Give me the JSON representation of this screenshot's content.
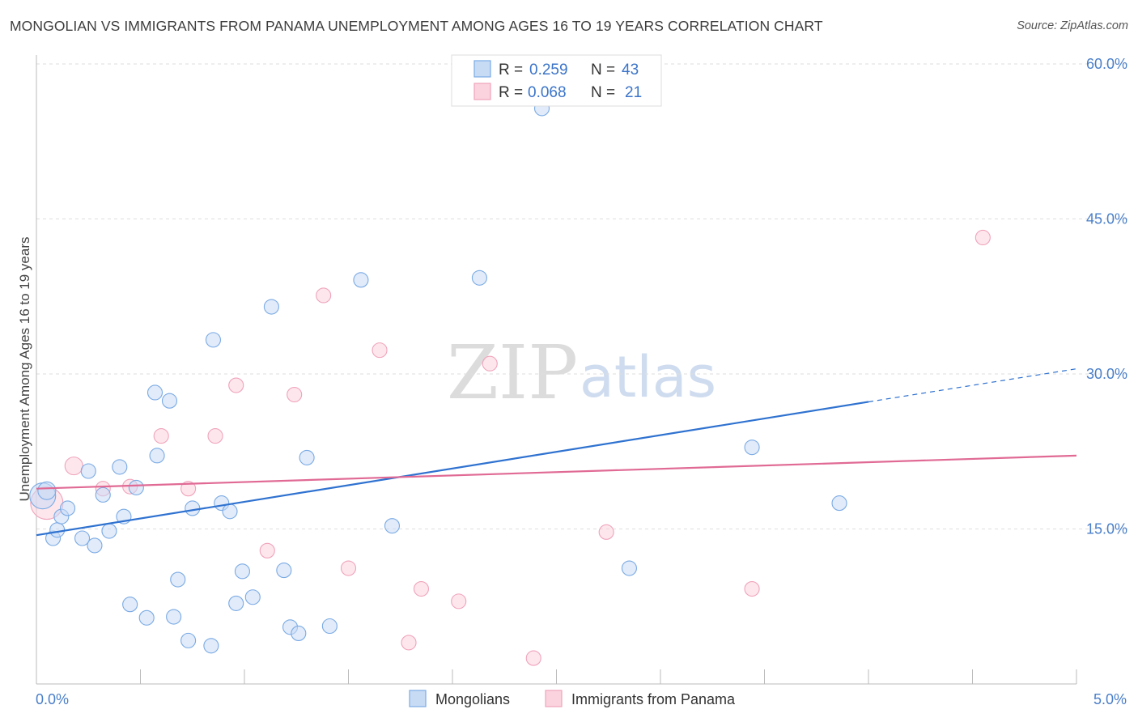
{
  "title": "MONGOLIAN VS IMMIGRANTS FROM PANAMA UNEMPLOYMENT AMONG AGES 16 TO 19 YEARS CORRELATION CHART",
  "source": "Source: ZipAtlas.com",
  "watermark": {
    "zip": "ZIP",
    "atlas": "atlas"
  },
  "legend": {
    "rows": [
      {
        "r_label": "R =",
        "r_value": "0.259",
        "n_label": "N =",
        "n_value": "43"
      },
      {
        "r_label": "R =",
        "r_value": "0.068",
        "n_label": "N =",
        "n_value": "21"
      }
    ]
  },
  "bottom_legend": [
    "Mongolians",
    "Immigrants from Panama"
  ],
  "chart_data": {
    "type": "scatter",
    "title": "MONGOLIAN VS IMMIGRANTS FROM PANAMA UNEMPLOYMENT AMONG AGES 16 TO 19 YEARS CORRELATION CHART",
    "xlabel": "",
    "ylabel": "Unemployment Among Ages 16 to 19 years",
    "xlim": [
      0,
      5.0
    ],
    "ylim": [
      0,
      60.0
    ],
    "x_tick_labels": [
      "0.0%",
      "5.0%"
    ],
    "y_ticks": [
      15,
      30,
      45,
      60
    ],
    "y_tick_labels": [
      "15.0%",
      "30.0%",
      "45.0%",
      "60.0%"
    ],
    "colors": {
      "mongolians": "#7aaae4",
      "panama": "#f0a3bb",
      "mongolians_line": "#2f72d0",
      "panama_line": "#e06a94",
      "tick_text": "#4a7fc9"
    },
    "series": [
      {
        "name": "Mongolians",
        "r": 0.259,
        "n": 43,
        "trend": {
          "x0": 0.0,
          "y0": 14.4,
          "x1": 4.0,
          "y1": 27.3,
          "dash_to_x": 5.0,
          "dash_to_y": 30.5
        },
        "points": [
          [
            0.03,
            18.2,
            16
          ],
          [
            0.05,
            18.7,
            11
          ],
          [
            0.08,
            14.1,
            9
          ],
          [
            0.1,
            14.9,
            9
          ],
          [
            0.12,
            16.2,
            9
          ],
          [
            0.15,
            17.0,
            9
          ],
          [
            0.22,
            14.1,
            9
          ],
          [
            0.25,
            20.6,
            9
          ],
          [
            0.28,
            13.4,
            9
          ],
          [
            0.32,
            18.3,
            9
          ],
          [
            0.35,
            14.8,
            9
          ],
          [
            0.4,
            21.0,
            9
          ],
          [
            0.42,
            16.2,
            9
          ],
          [
            0.45,
            7.7,
            9
          ],
          [
            0.48,
            19.0,
            9
          ],
          [
            0.53,
            6.4,
            9
          ],
          [
            0.57,
            28.2,
            9
          ],
          [
            0.58,
            22.1,
            9
          ],
          [
            0.64,
            27.4,
            9
          ],
          [
            0.66,
            6.5,
            9
          ],
          [
            0.68,
            10.1,
            9
          ],
          [
            0.73,
            4.2,
            9
          ],
          [
            0.75,
            17.0,
            9
          ],
          [
            0.84,
            3.7,
            9
          ],
          [
            0.85,
            33.3,
            9
          ],
          [
            0.89,
            17.5,
            9
          ],
          [
            0.93,
            16.7,
            9
          ],
          [
            0.96,
            7.8,
            9
          ],
          [
            0.99,
            10.9,
            9
          ],
          [
            1.04,
            8.4,
            9
          ],
          [
            1.13,
            36.5,
            9
          ],
          [
            1.19,
            11.0,
            9
          ],
          [
            1.22,
            5.5,
            9
          ],
          [
            1.26,
            4.9,
            9
          ],
          [
            1.3,
            21.9,
            9
          ],
          [
            1.41,
            5.6,
            9
          ],
          [
            1.56,
            39.1,
            9
          ],
          [
            1.71,
            15.3,
            9
          ],
          [
            2.13,
            39.3,
            9
          ],
          [
            2.43,
            55.7,
            9
          ],
          [
            2.85,
            11.2,
            9
          ],
          [
            3.44,
            22.9,
            9
          ],
          [
            3.86,
            17.5,
            9
          ]
        ]
      },
      {
        "name": "Immigrants from Panama",
        "r": 0.068,
        "n": 21,
        "trend": {
          "x0": 0.0,
          "y0": 18.9,
          "x1": 5.0,
          "y1": 22.1
        },
        "points": [
          [
            0.05,
            17.5,
            20
          ],
          [
            0.18,
            21.1,
            11
          ],
          [
            0.32,
            18.9,
            9
          ],
          [
            0.45,
            19.1,
            9
          ],
          [
            0.6,
            24.0,
            9
          ],
          [
            0.73,
            18.9,
            9
          ],
          [
            0.86,
            24.0,
            9
          ],
          [
            0.96,
            28.9,
            9
          ],
          [
            1.11,
            12.9,
            9
          ],
          [
            1.24,
            28.0,
            9
          ],
          [
            1.38,
            37.6,
            9
          ],
          [
            1.5,
            11.2,
            9
          ],
          [
            1.65,
            32.3,
            9
          ],
          [
            1.79,
            4.0,
            9
          ],
          [
            1.85,
            9.2,
            9
          ],
          [
            2.03,
            8.0,
            9
          ],
          [
            2.18,
            31.0,
            9
          ],
          [
            2.39,
            2.5,
            9
          ],
          [
            2.74,
            14.7,
            9
          ],
          [
            3.44,
            9.2,
            9
          ],
          [
            4.55,
            43.2,
            9
          ]
        ]
      }
    ]
  }
}
